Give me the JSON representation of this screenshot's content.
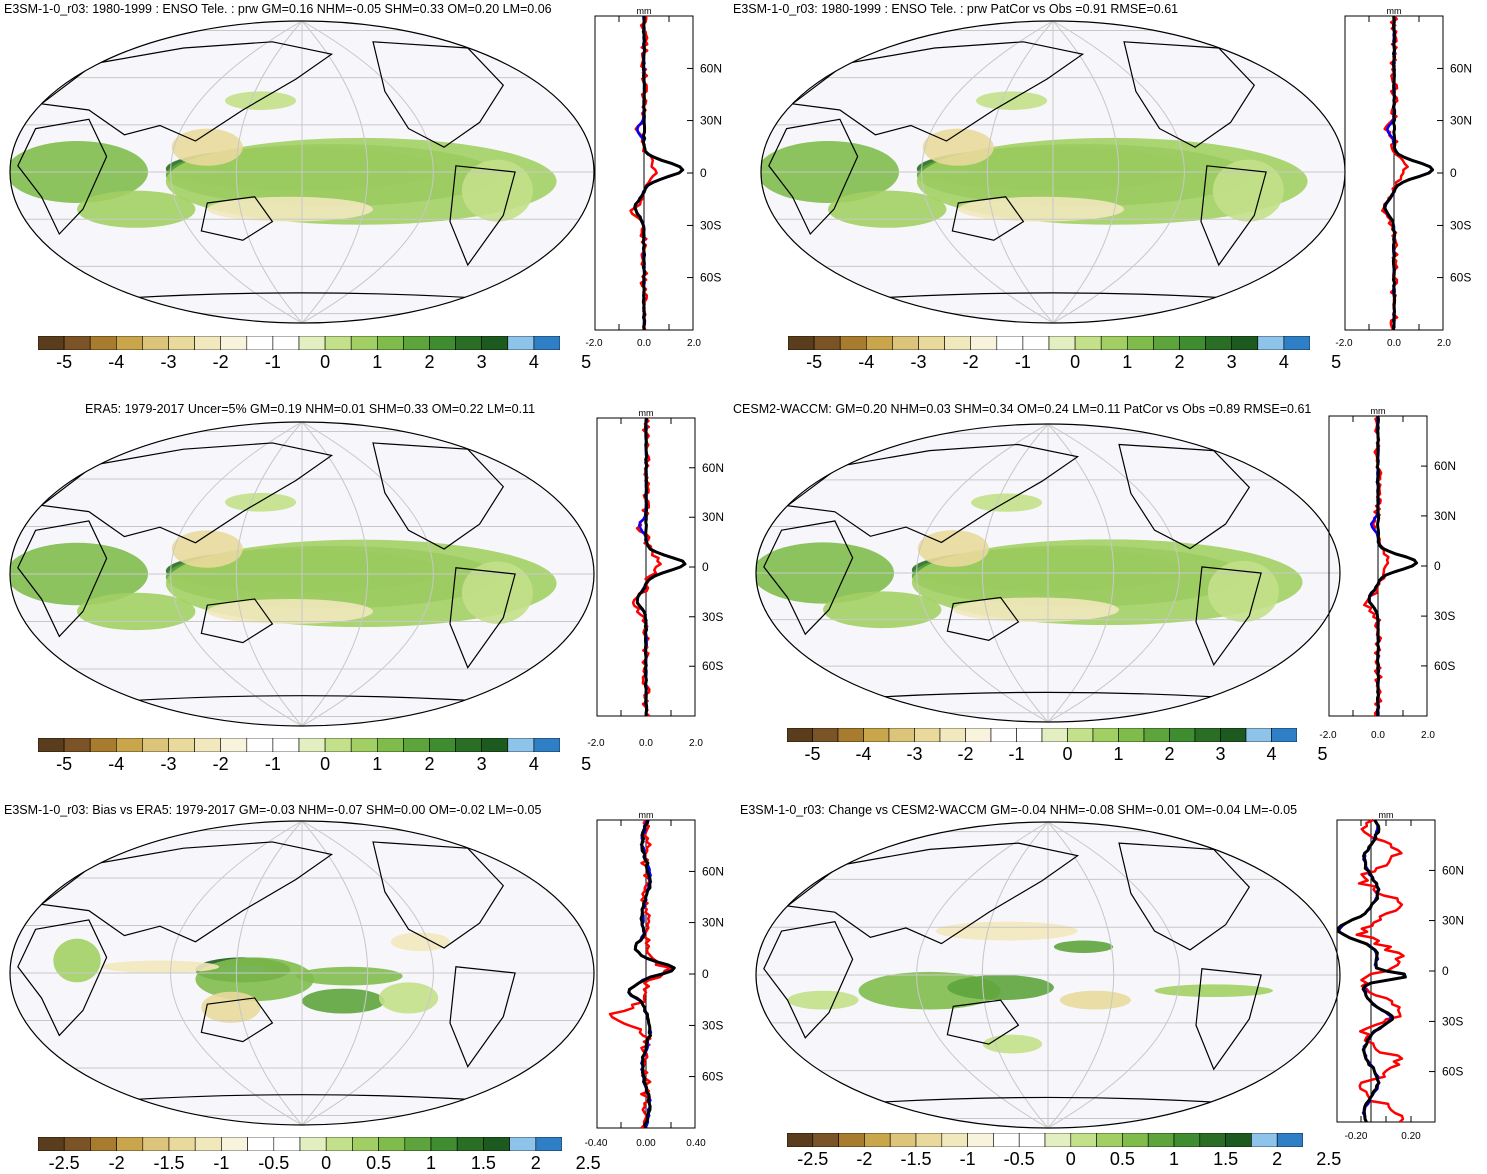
{
  "panels": [
    {
      "title": "E3SM-1-0_r03: 1980-1999 : ENSO Tele. : prw GM=0.16 NHM=-0.05 SHM=0.33 OM=0.20 LM=0.06",
      "profile_unit": "mm",
      "profile_xticks": [
        "-2.0",
        "0.0",
        "2.0"
      ],
      "profile_yticks": [
        "60N",
        "30N",
        "0",
        "30S",
        "60S"
      ],
      "colorbar_labels": [
        "-5",
        "-4",
        "-3",
        "-2",
        "-1",
        "0",
        "1",
        "2",
        "3",
        "4",
        "5"
      ],
      "scale": "full"
    },
    {
      "title": "E3SM-1-0_r03: 1980-1999 : ENSO Tele. : prw PatCor vs Obs =0.91 RMSE=0.61",
      "profile_unit": "mm",
      "profile_xticks": [
        "-2.0",
        "0.0",
        "2.0"
      ],
      "profile_yticks": [
        "60N",
        "30N",
        "0",
        "30S",
        "60S"
      ],
      "colorbar_labels": [
        "-5",
        "-4",
        "-3",
        "-2",
        "-1",
        "0",
        "1",
        "2",
        "3",
        "4",
        "5"
      ],
      "scale": "full"
    },
    {
      "title": "ERA5: 1979-2017 Uncer=5% GM=0.19 NHM=0.01 SHM=0.33 OM=0.22 LM=0.11",
      "profile_unit": "mm",
      "profile_xticks": [
        "-2.0",
        "0.0",
        "2.0"
      ],
      "profile_yticks": [
        "60N",
        "30N",
        "0",
        "30S",
        "60S"
      ],
      "colorbar_labels": [
        "-5",
        "-4",
        "-3",
        "-2",
        "-1",
        "0",
        "1",
        "2",
        "3",
        "4",
        "5"
      ],
      "scale": "full"
    },
    {
      "title": "CESM2-WACCM: GM=0.20 NHM=0.03 SHM=0.34 OM=0.24 LM=0.11 PatCor vs Obs =0.89 RMSE=0.61",
      "profile_unit": "mm",
      "profile_xticks": [
        "-2.0",
        "0.0",
        "2.0"
      ],
      "profile_yticks": [
        "60N",
        "30N",
        "0",
        "30S",
        "60S"
      ],
      "colorbar_labels": [
        "-5",
        "-4",
        "-3",
        "-2",
        "-1",
        "0",
        "1",
        "2",
        "3",
        "4",
        "5"
      ],
      "scale": "full"
    },
    {
      "title": "E3SM-1-0_r03: Bias vs ERA5: 1979-2017 GM=-0.03 NHM=-0.07 SHM=0.00 OM=-0.02 LM=-0.05",
      "profile_unit": "mm",
      "profile_xticks": [
        "-0.40",
        "0.00",
        "0.40"
      ],
      "profile_yticks": [
        "60N",
        "30N",
        "0",
        "30S",
        "60S"
      ],
      "colorbar_labels": [
        "-2.5",
        "-2",
        "-1.5",
        "-1",
        "-0.5",
        "0",
        "0.5",
        "1",
        "1.5",
        "2",
        "2.5"
      ],
      "scale": "bias"
    },
    {
      "title": "E3SM-1-0_r03: Change vs CESM2-WACCM GM=-0.04 NHM=-0.08 SHM=-0.01 OM=-0.04 LM=-0.05",
      "profile_unit": "mm",
      "profile_xticks": [
        "-0.20",
        "0.20"
      ],
      "profile_yticks": [
        "60N",
        "30N",
        "0",
        "30S",
        "60S"
      ],
      "colorbar_labels": [
        "-2.5",
        "-2",
        "-1.5",
        "-1",
        "-0.5",
        "0",
        "0.5",
        "1",
        "1.5",
        "2",
        "2.5"
      ],
      "scale": "change"
    }
  ],
  "palette": [
    "#5a3d1c",
    "#7a5426",
    "#a77c2e",
    "#c9a54b",
    "#dcc47a",
    "#e9d99c",
    "#f2e8bd",
    "#f8f3dd",
    "#ffffff",
    "#ffffff",
    "#e3efc0",
    "#c3e08a",
    "#a2cf64",
    "#7fbc4c",
    "#5da43c",
    "#3f8c31",
    "#2a6e25",
    "#1d5a1f",
    "#8fc4ea",
    "#2f7fc6"
  ],
  "series_colors": {
    "model": "#0000ff",
    "obs": "#ff0000",
    "zonal_mean": "#000000"
  }
}
